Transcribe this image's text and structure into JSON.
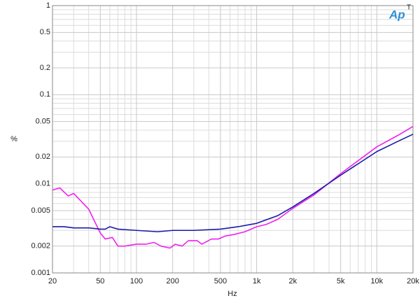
{
  "chart_data": {
    "type": "line",
    "x_label": "Hz",
    "y_label": "%",
    "logo": "Ap",
    "logo_sup": "T",
    "log_x": true,
    "log_y": true,
    "grid": true,
    "xlim": [
      20,
      20000
    ],
    "ylim": [
      0.001,
      1
    ],
    "xticks": [
      20,
      50,
      100,
      200,
      500,
      {
        "value": 1000,
        "label": "1k"
      },
      {
        "value": 2000,
        "label": "2k"
      },
      {
        "value": 5000,
        "label": "5k"
      },
      {
        "value": 10000,
        "label": "10k"
      },
      {
        "value": 20000,
        "label": "20k"
      }
    ],
    "yticks": [
      0.001,
      0.002,
      0.005,
      0.01,
      0.02,
      0.05,
      0.1,
      0.2,
      0.5,
      1
    ],
    "x_minor_ticks": [
      30,
      40,
      60,
      70,
      80,
      90,
      300,
      400,
      600,
      700,
      800,
      900,
      3000,
      4000,
      6000,
      7000,
      8000,
      9000
    ],
    "y_minor_ticks": [
      0.003,
      0.004,
      0.006,
      0.007,
      0.008,
      0.009,
      0.03,
      0.04,
      0.06,
      0.07,
      0.08,
      0.09,
      0.3,
      0.4,
      0.6,
      0.7,
      0.8,
      0.9
    ],
    "series": [
      {
        "color": "#ee22ee",
        "x": [
          20,
          23,
          27,
          30,
          40,
          50,
          55,
          63,
          70,
          80,
          100,
          120,
          140,
          160,
          190,
          210,
          240,
          270,
          320,
          350,
          420,
          480,
          550,
          650,
          800,
          1000,
          1200,
          1500,
          2000,
          3000,
          5000,
          10000,
          15000,
          20000
        ],
        "values": [
          0.0085,
          0.009,
          0.0073,
          0.0078,
          0.0052,
          0.0028,
          0.0024,
          0.0025,
          0.002,
          0.002,
          0.0021,
          0.0021,
          0.0022,
          0.002,
          0.0019,
          0.0021,
          0.002,
          0.0023,
          0.0023,
          0.0021,
          0.0024,
          0.0024,
          0.0026,
          0.0027,
          0.0029,
          0.0033,
          0.0035,
          0.004,
          0.0053,
          0.0075,
          0.013,
          0.026,
          0.035,
          0.044
        ]
      },
      {
        "color": "#1a1aa8",
        "x": [
          20,
          25,
          30,
          40,
          50,
          55,
          60,
          70,
          100,
          150,
          200,
          250,
          300,
          500,
          700,
          1000,
          1500,
          2000,
          3000,
          5000,
          10000,
          15000,
          20000
        ],
        "values": [
          0.0033,
          0.0033,
          0.0032,
          0.0032,
          0.0031,
          0.0031,
          0.0033,
          0.0031,
          0.003,
          0.0029,
          0.003,
          0.003,
          0.003,
          0.0031,
          0.0033,
          0.0036,
          0.0044,
          0.0055,
          0.0078,
          0.0125,
          0.023,
          0.03,
          0.036
        ]
      }
    ]
  }
}
